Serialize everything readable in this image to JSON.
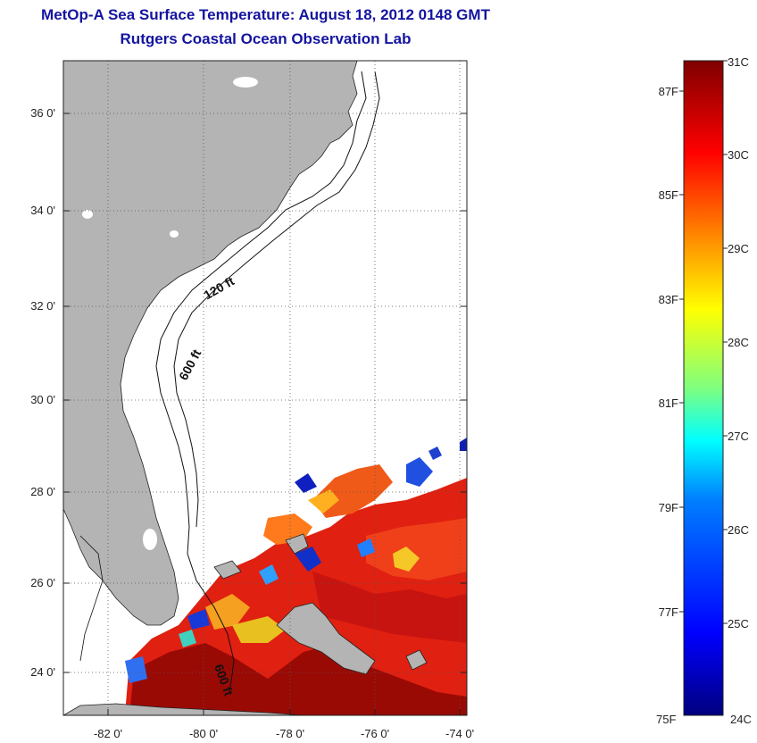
{
  "title": {
    "line1": "MetOp-A Sea Surface Temperature:  August 18, 2012 0148 GMT",
    "line2": "Rutgers Coastal Ocean Observation Lab"
  },
  "map": {
    "lat_ticks": [
      "36 0'",
      "34 0'",
      "32 0'",
      "30 0'",
      "28 0'",
      "26 0'",
      "24 0'"
    ],
    "lon_ticks": [
      "-82 0'",
      "-80 0'",
      "-78 0'",
      "-76 0'",
      "-74 0'"
    ],
    "contour_labels": [
      "120 ft",
      "600 ft",
      "600 ft"
    ],
    "land_color": "#b4b4b4",
    "ocean_color": "#ffffff",
    "grid": "dotted"
  },
  "colorbar": {
    "celsius_labels": [
      "31C",
      "30C",
      "29C",
      "28C",
      "27C",
      "26C",
      "25C",
      "24C"
    ],
    "fahrenheit_labels": [
      "87F",
      "85F",
      "83F",
      "81F",
      "79F",
      "77F",
      "75F"
    ],
    "colors": [
      "#00007f",
      "#0000ff",
      "#007fff",
      "#00ffff",
      "#7fff7f",
      "#ffff00",
      "#ff7f00",
      "#ff0000",
      "#7f0000"
    ],
    "min_c": 24,
    "max_c": 31
  }
}
